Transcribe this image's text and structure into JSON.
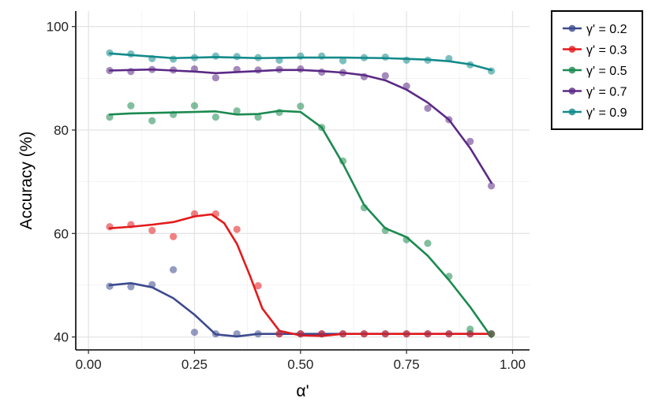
{
  "chart_data": {
    "type": "scatter",
    "xlabel": "α'",
    "ylabel": "Accuracy (%)",
    "xlim": [
      -0.03,
      1.04
    ],
    "ylim": [
      37.5,
      103
    ],
    "x_ticks": [
      0.0,
      0.25,
      0.5,
      0.75,
      1.0
    ],
    "x_tick_labels": [
      "0.00",
      "0.25",
      "0.50",
      "0.75",
      "1.00"
    ],
    "y_ticks": [
      40,
      60,
      80,
      100
    ],
    "y_tick_labels": [
      "40",
      "60",
      "80",
      "100"
    ],
    "grid": true,
    "legend_position": "right-top",
    "x": [
      0.05,
      0.1,
      0.15,
      0.2,
      0.25,
      0.3,
      0.35,
      0.4,
      0.45,
      0.5,
      0.55,
      0.6,
      0.65,
      0.7,
      0.75,
      0.8,
      0.85,
      0.9,
      0.95
    ],
    "series": [
      {
        "name": "γ' = 0.2",
        "color": "#3c4a8e",
        "points": [
          49.8,
          49.7,
          50.1,
          53.0,
          40.9,
          40.6,
          40.6,
          40.6,
          40.6,
          40.6,
          40.6,
          40.6,
          40.6,
          40.6,
          40.6,
          40.6,
          40.6,
          40.6,
          40.6
        ],
        "smooth": [
          [
            0.05,
            50.0
          ],
          [
            0.1,
            50.4
          ],
          [
            0.15,
            49.6
          ],
          [
            0.2,
            47.5
          ],
          [
            0.25,
            44.3
          ],
          [
            0.3,
            40.5
          ],
          [
            0.35,
            40.1
          ],
          [
            0.4,
            40.6
          ],
          [
            0.5,
            40.6
          ],
          [
            0.6,
            40.6
          ],
          [
            0.7,
            40.6
          ],
          [
            0.8,
            40.6
          ],
          [
            0.9,
            40.6
          ],
          [
            0.95,
            40.6
          ]
        ]
      },
      {
        "name": "γ' = 0.3",
        "color": "#e31a1c",
        "points": [
          61.3,
          61.7,
          60.6,
          59.4,
          63.8,
          63.8,
          60.8,
          49.9,
          40.6,
          40.6,
          40.6,
          40.6,
          40.6,
          40.6,
          40.6,
          40.6,
          40.6,
          40.6,
          40.6
        ],
        "smooth": [
          [
            0.05,
            61.0
          ],
          [
            0.1,
            61.3
          ],
          [
            0.15,
            61.7
          ],
          [
            0.2,
            62.2
          ],
          [
            0.25,
            63.3
          ],
          [
            0.29,
            63.7
          ],
          [
            0.32,
            62.0
          ],
          [
            0.35,
            58.0
          ],
          [
            0.38,
            52.0
          ],
          [
            0.41,
            45.5
          ],
          [
            0.45,
            41.2
          ],
          [
            0.5,
            40.3
          ],
          [
            0.55,
            40.2
          ],
          [
            0.6,
            40.6
          ],
          [
            0.7,
            40.6
          ],
          [
            0.8,
            40.6
          ],
          [
            0.9,
            40.6
          ],
          [
            0.95,
            40.6
          ]
        ]
      },
      {
        "name": "γ' = 0.5",
        "color": "#1b8a50",
        "points": [
          82.5,
          84.7,
          81.8,
          83.0,
          84.7,
          82.5,
          83.7,
          82.5,
          83.4,
          84.6,
          80.5,
          74.0,
          65.0,
          60.6,
          58.8,
          58.1,
          51.7,
          41.5,
          40.6
        ],
        "smooth": [
          [
            0.05,
            83.0
          ],
          [
            0.1,
            83.2
          ],
          [
            0.15,
            83.3
          ],
          [
            0.2,
            83.4
          ],
          [
            0.25,
            83.5
          ],
          [
            0.3,
            83.6
          ],
          [
            0.35,
            83.0
          ],
          [
            0.4,
            83.1
          ],
          [
            0.45,
            83.7
          ],
          [
            0.5,
            83.5
          ],
          [
            0.55,
            80.5
          ],
          [
            0.6,
            73.5
          ],
          [
            0.65,
            65.5
          ],
          [
            0.7,
            61.0
          ],
          [
            0.75,
            59.3
          ],
          [
            0.8,
            55.7
          ],
          [
            0.85,
            51.0
          ],
          [
            0.9,
            45.8
          ],
          [
            0.95,
            40.0
          ]
        ]
      },
      {
        "name": "γ' = 0.7",
        "color": "#5b2a86",
        "points": [
          91.5,
          91.3,
          91.7,
          91.6,
          91.8,
          90.1,
          91.7,
          91.6,
          91.7,
          91.8,
          91.2,
          91.1,
          90.3,
          90.5,
          88.5,
          84.2,
          82.0,
          77.8,
          69.2
        ],
        "smooth": [
          [
            0.05,
            91.5
          ],
          [
            0.1,
            91.6
          ],
          [
            0.15,
            91.7
          ],
          [
            0.2,
            91.5
          ],
          [
            0.25,
            91.3
          ],
          [
            0.3,
            91.0
          ],
          [
            0.35,
            91.2
          ],
          [
            0.4,
            91.4
          ],
          [
            0.45,
            91.6
          ],
          [
            0.5,
            91.6
          ],
          [
            0.55,
            91.4
          ],
          [
            0.6,
            91.1
          ],
          [
            0.65,
            90.6
          ],
          [
            0.7,
            89.6
          ],
          [
            0.75,
            87.8
          ],
          [
            0.8,
            85.3
          ],
          [
            0.85,
            82.0
          ],
          [
            0.9,
            76.5
          ],
          [
            0.95,
            69.8
          ]
        ]
      },
      {
        "name": "γ' = 0.9",
        "color": "#138a8a",
        "points": [
          94.9,
          94.7,
          93.8,
          93.7,
          94.0,
          94.3,
          94.2,
          94.0,
          93.5,
          94.3,
          94.3,
          93.4,
          94.0,
          94.1,
          93.5,
          93.5,
          93.8,
          92.6,
          91.4
        ],
        "smooth": [
          [
            0.05,
            94.8
          ],
          [
            0.1,
            94.5
          ],
          [
            0.15,
            94.2
          ],
          [
            0.2,
            93.9
          ],
          [
            0.25,
            94.0
          ],
          [
            0.3,
            94.1
          ],
          [
            0.35,
            94.0
          ],
          [
            0.4,
            93.9
          ],
          [
            0.5,
            94.0
          ],
          [
            0.6,
            94.0
          ],
          [
            0.7,
            93.9
          ],
          [
            0.8,
            93.6
          ],
          [
            0.85,
            93.3
          ],
          [
            0.9,
            92.7
          ],
          [
            0.95,
            91.6
          ]
        ]
      }
    ]
  }
}
